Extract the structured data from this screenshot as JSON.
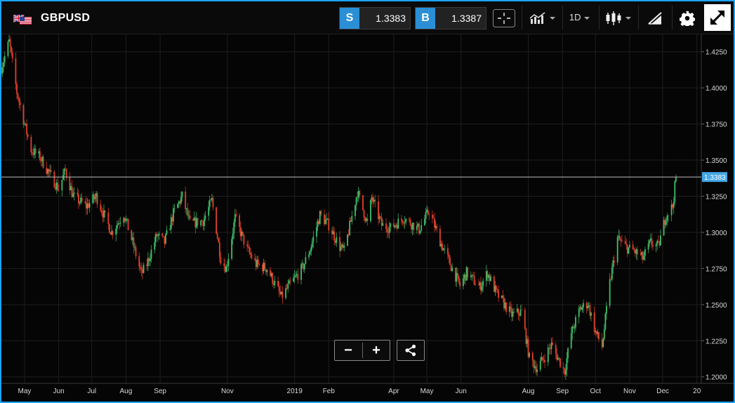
{
  "header": {
    "symbol": "GBPUSD",
    "sell_label": "S",
    "sell_price": "1.3383",
    "buy_label": "B",
    "buy_price": "1.3387",
    "interval": "1D",
    "icons": [
      "gb-us-flag-icon",
      "crosshair-icon",
      "indicators-icon",
      "chevron-down-icon",
      "candlestick-icon",
      "drawing-tools-icon",
      "gear-icon",
      "fullscreen-icon"
    ]
  },
  "zoom": {
    "minus": "−",
    "plus": "+",
    "share_icon": "share-icon"
  },
  "colors": {
    "up": "#3fbf6a",
    "down": "#e0402b",
    "accent": "#1aa3ff",
    "grid": "#1e1e1e",
    "current_line": "#bdbdbd",
    "price_tag": "#43a6e6"
  },
  "chart_data": {
    "type": "candlestick",
    "series": [
      {
        "name": "GBPUSD"
      }
    ],
    "yticks": [
      "1.4250",
      "1.4000",
      "1.3750",
      "1.3500",
      "1.3250",
      "1.3000",
      "1.2750",
      "1.2500",
      "1.2250",
      "1.2000"
    ],
    "ylim": [
      1.1955,
      1.437
    ],
    "xticks": [
      {
        "label": "May",
        "date": "2018-05-01"
      },
      {
        "label": "Jun",
        "date": "2018-06-01"
      },
      {
        "label": "Jul",
        "date": "2018-07-01"
      },
      {
        "label": "Aug",
        "date": "2018-08-01"
      },
      {
        "label": "Sep",
        "date": "2018-09-01"
      },
      {
        "label": "Nov",
        "date": "2018-11-01"
      },
      {
        "label": "2019",
        "date": "2019-01-01"
      },
      {
        "label": "Feb",
        "date": "2019-02-01"
      },
      {
        "label": "Apr",
        "date": "2019-04-01"
      },
      {
        "label": "May",
        "date": "2019-05-01"
      },
      {
        "label": "Jun",
        "date": "2019-06-01"
      },
      {
        "label": "Aug",
        "date": "2019-08-01"
      },
      {
        "label": "Sep",
        "date": "2019-09-01"
      },
      {
        "label": "Oct",
        "date": "2019-10-01"
      },
      {
        "label": "Nov",
        "date": "2019-11-01"
      },
      {
        "label": "Dec",
        "date": "2019-12-01"
      },
      {
        "label": "20",
        "date": "2020-01-01"
      }
    ],
    "xlim": [
      "2018-04-10",
      "2020-01-05"
    ],
    "current_price": 1.3383,
    "current_price_label": "1.3383",
    "close_path": [
      [
        "2018-04-10",
        1.414
      ],
      [
        "2018-04-17",
        1.432
      ],
      [
        "2018-04-24",
        1.397
      ],
      [
        "2018-05-01",
        1.375
      ],
      [
        "2018-05-07",
        1.357
      ],
      [
        "2018-05-15",
        1.352
      ],
      [
        "2018-05-24",
        1.34
      ],
      [
        "2018-06-01",
        1.33
      ],
      [
        "2018-06-07",
        1.343
      ],
      [
        "2018-06-14",
        1.325
      ],
      [
        "2018-06-26",
        1.318
      ],
      [
        "2018-07-05",
        1.325
      ],
      [
        "2018-07-13",
        1.31
      ],
      [
        "2018-07-19",
        1.3
      ],
      [
        "2018-07-30",
        1.313
      ],
      [
        "2018-08-07",
        1.293
      ],
      [
        "2018-08-15",
        1.271
      ],
      [
        "2018-08-20",
        1.278
      ],
      [
        "2018-08-29",
        1.298
      ],
      [
        "2018-09-05",
        1.293
      ],
      [
        "2018-09-13",
        1.313
      ],
      [
        "2018-09-21",
        1.325
      ],
      [
        "2018-09-28",
        1.306
      ],
      [
        "2018-10-10",
        1.308
      ],
      [
        "2018-10-18",
        1.322
      ],
      [
        "2018-10-26",
        1.282
      ],
      [
        "2018-10-31",
        1.275
      ],
      [
        "2018-11-08",
        1.31
      ],
      [
        "2018-11-19",
        1.288
      ],
      [
        "2018-11-27",
        1.278
      ],
      [
        "2018-12-07",
        1.275
      ],
      [
        "2018-12-13",
        1.266
      ],
      [
        "2018-12-20",
        1.255
      ],
      [
        "2018-12-27",
        1.263
      ],
      [
        "2019-01-08",
        1.275
      ],
      [
        "2019-01-15",
        1.288
      ],
      [
        "2019-01-24",
        1.312
      ],
      [
        "2019-02-01",
        1.305
      ],
      [
        "2019-02-11",
        1.29
      ],
      [
        "2019-02-15",
        1.287
      ],
      [
        "2019-02-27",
        1.328
      ],
      [
        "2019-03-08",
        1.306
      ],
      [
        "2019-03-12",
        1.324
      ],
      [
        "2019-03-21",
        1.305
      ],
      [
        "2019-03-29",
        1.303
      ],
      [
        "2019-04-10",
        1.31
      ],
      [
        "2019-04-24",
        1.302
      ],
      [
        "2019-05-03",
        1.315
      ],
      [
        "2019-05-14",
        1.292
      ],
      [
        "2019-05-31",
        1.263
      ],
      [
        "2019-06-06",
        1.272
      ],
      [
        "2019-06-18",
        1.262
      ],
      [
        "2019-06-25",
        1.272
      ],
      [
        "2019-07-03",
        1.258
      ],
      [
        "2019-07-17",
        1.243
      ],
      [
        "2019-07-26",
        1.245
      ],
      [
        "2019-08-02",
        1.213
      ],
      [
        "2019-08-09",
        1.206
      ],
      [
        "2019-08-16",
        1.214
      ],
      [
        "2019-08-22",
        1.222
      ],
      [
        "2019-09-03",
        1.204
      ],
      [
        "2019-09-09",
        1.23
      ],
      [
        "2019-09-17",
        1.247
      ],
      [
        "2019-09-24",
        1.251
      ],
      [
        "2019-10-01",
        1.231
      ],
      [
        "2019-10-07",
        1.221
      ],
      [
        "2019-10-14",
        1.265
      ],
      [
        "2019-10-21",
        1.296
      ],
      [
        "2019-10-28",
        1.29
      ],
      [
        "2019-11-05",
        1.287
      ],
      [
        "2019-11-13",
        1.282
      ],
      [
        "2019-11-20",
        1.293
      ],
      [
        "2019-11-27",
        1.29
      ],
      [
        "2019-12-04",
        1.312
      ],
      [
        "2019-12-10",
        1.318
      ],
      [
        "2019-12-13",
        1.338
      ]
    ]
  }
}
